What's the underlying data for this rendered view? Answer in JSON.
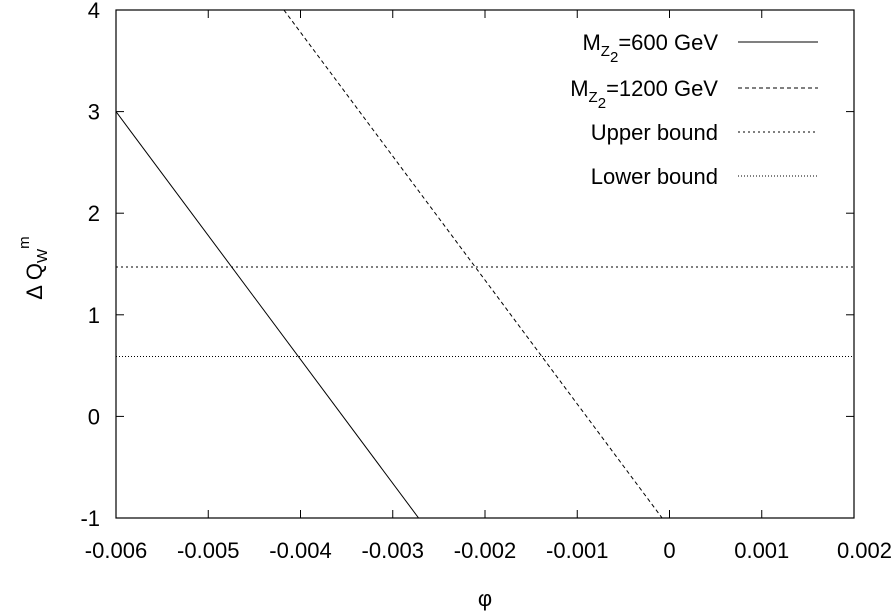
{
  "chart_data": {
    "type": "line",
    "title": "",
    "xlabel": "φ",
    "ylabel": {
      "prefix": "Δ Q",
      "subscript": "W",
      "superscript": "m"
    },
    "xlim": [
      -0.006,
      0.002
    ],
    "ylim": [
      -1,
      4
    ],
    "x_ticks": [
      -0.006,
      -0.005,
      -0.004,
      -0.003,
      -0.002,
      -0.001,
      0,
      0.001,
      0.002
    ],
    "x_tick_labels": [
      "-0.006",
      "-0.005",
      "-0.004",
      "-0.003",
      "-0.002",
      "-0.001",
      "0",
      "0.001",
      "0.002"
    ],
    "y_ticks": [
      -1,
      0,
      1,
      2,
      3,
      4
    ],
    "y_tick_labels": [
      "-1",
      "0",
      "1",
      "2",
      "3",
      "4"
    ],
    "grid": false,
    "legend_position": "top-right",
    "series": [
      {
        "name": "M_Z2=600 GeV",
        "label": {
          "main": "M",
          "sub1": "Z",
          "sub2": "2",
          "rest": "=600 GeV"
        },
        "style": "solid",
        "x": [
          -0.006,
          -0.00272
        ],
        "y": [
          3,
          -1
        ]
      },
      {
        "name": "M_Z2=1200 GeV",
        "label": {
          "main": "M",
          "sub1": "Z",
          "sub2": "2",
          "rest": "=1200 GeV"
        },
        "style": "dashed",
        "x": [
          -0.00418,
          -8e-05
        ],
        "y": [
          4,
          -1
        ]
      },
      {
        "name": "Upper  bound",
        "label": {
          "main": "Upper  bound"
        },
        "style": "dotted-coarse",
        "x": [
          -0.006,
          0.002
        ],
        "y": [
          1.47,
          1.47
        ]
      },
      {
        "name": "Lower bound",
        "label": {
          "main": "Lower bound"
        },
        "style": "dotted-fine",
        "x": [
          -0.006,
          0.002
        ],
        "y": [
          0.59,
          0.59
        ]
      }
    ]
  }
}
